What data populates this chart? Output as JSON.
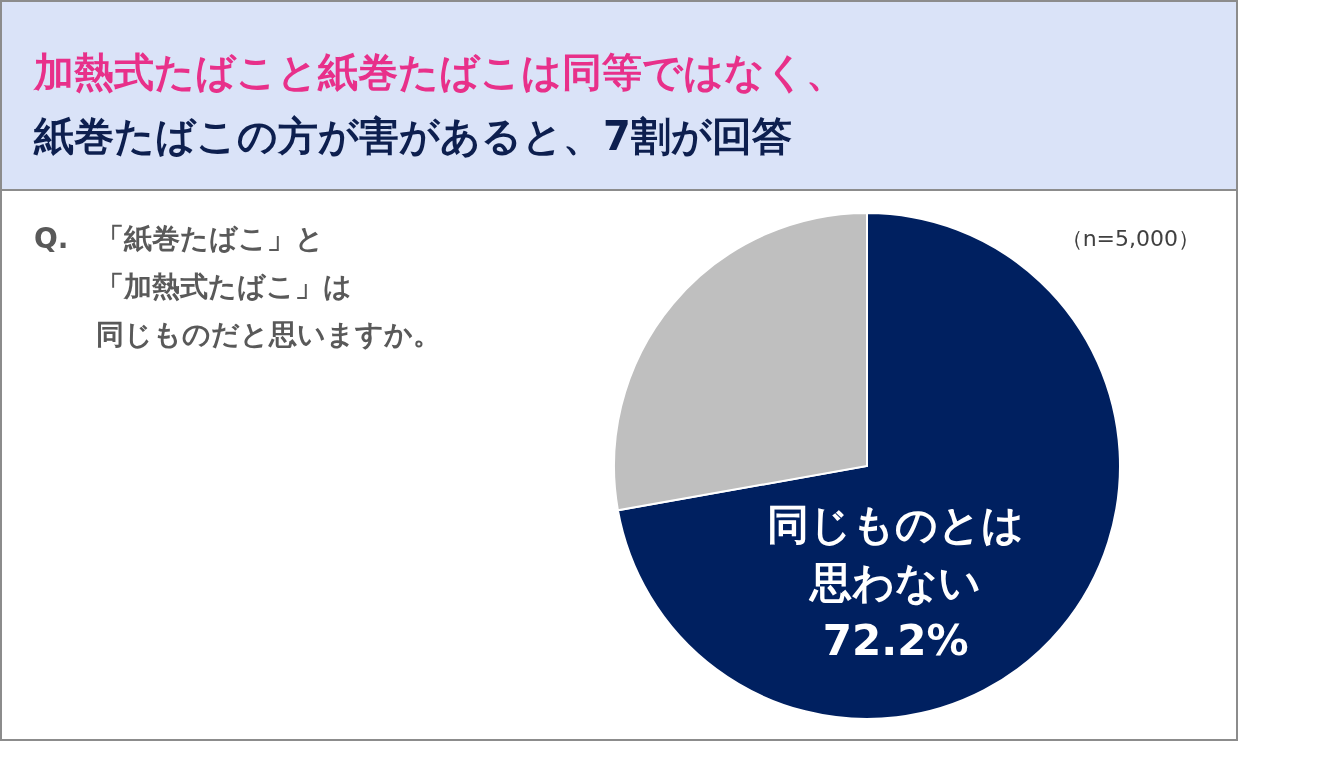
{
  "chart_data": {
    "type": "pie",
    "title": "加熱式たばこと紙巻たばこは同等ではなく、",
    "subtitle": "紙巻たばこの方が害があると、7割が回答",
    "categories": [
      "同じものとは思わない",
      null
    ],
    "values": [
      72.2,
      27.8
    ],
    "colors": [
      "#002060",
      "#bfbfbf"
    ],
    "value_labels": [
      "72.2%",
      null
    ],
    "annotations": [
      "Q.",
      "「紙巻たばこ」と",
      "「加熱式たばこ」は",
      "同じものだと思いますか。",
      "（n=5,000）"
    ]
  }
}
